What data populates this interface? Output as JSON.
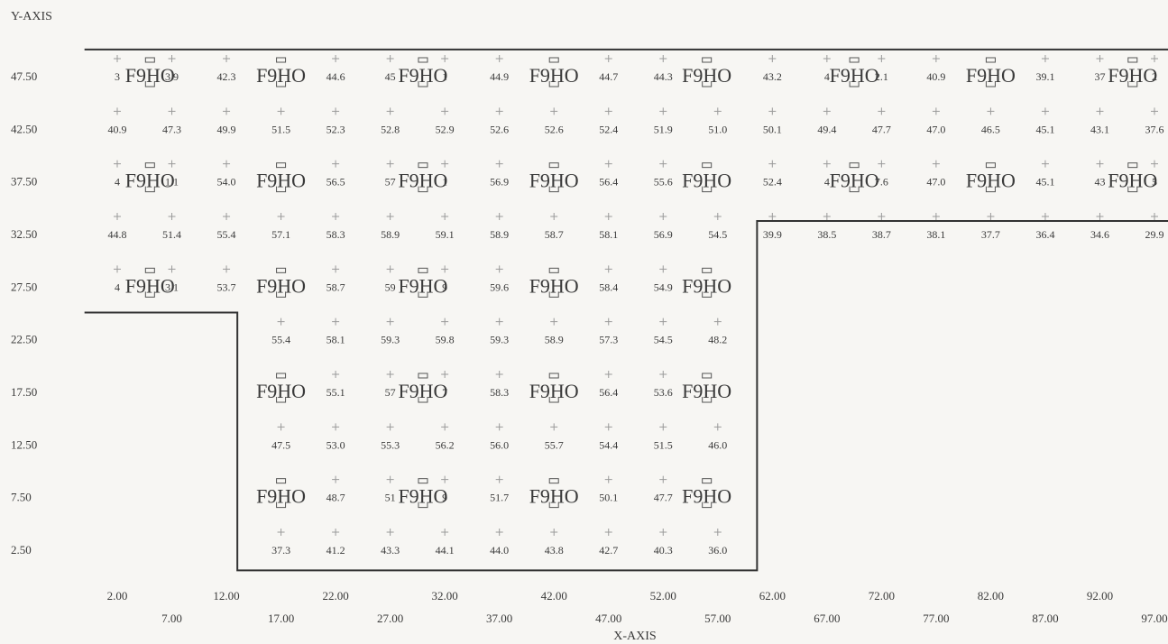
{
  "chart_data": {
    "type": "scatter",
    "xlabel": "X-AXIS",
    "ylabel": "Y-AXIS",
    "xlim": [
      2,
      97
    ],
    "ylim": [
      2.5,
      47.5
    ],
    "x_ticks": [
      "2.00",
      "7.00",
      "12.00",
      "17.00",
      "22.00",
      "27.00",
      "32.00",
      "37.00",
      "42.00",
      "47.00",
      "52.00",
      "57.00",
      "62.00",
      "67.00",
      "72.00",
      "77.00",
      "82.00",
      "87.00",
      "92.00",
      "97.00"
    ],
    "y_ticks": [
      "47.50",
      "42.50",
      "37.50",
      "32.50",
      "27.50",
      "22.50",
      "17.50",
      "12.50",
      "7.50",
      "2.50"
    ],
    "value_rows": [
      {
        "y": 47.5,
        "points": [
          [
            2,
            "3"
          ],
          [
            7,
            "3.9"
          ],
          [
            12,
            "42.3"
          ],
          [
            22,
            "44.6"
          ],
          [
            27,
            "45"
          ],
          [
            32,
            "1"
          ],
          [
            37,
            "44.9"
          ],
          [
            47,
            "44.7"
          ],
          [
            52,
            "44.3"
          ],
          [
            62,
            "43.2"
          ],
          [
            67,
            "4"
          ],
          [
            72,
            "2.1"
          ],
          [
            77,
            "40.9"
          ],
          [
            87,
            "39.1"
          ],
          [
            92,
            "37"
          ],
          [
            97,
            "2"
          ]
        ]
      },
      {
        "y": 42.5,
        "points": [
          [
            2,
            "40.9"
          ],
          [
            7,
            "47.3"
          ],
          [
            12,
            "49.9"
          ],
          [
            17,
            "51.5"
          ],
          [
            22,
            "52.3"
          ],
          [
            27,
            "52.8"
          ],
          [
            32,
            "52.9"
          ],
          [
            37,
            "52.6"
          ],
          [
            42,
            "52.6"
          ],
          [
            47,
            "52.4"
          ],
          [
            52,
            "51.9"
          ],
          [
            57,
            "51.0"
          ],
          [
            62,
            "50.1"
          ],
          [
            67,
            "49.4"
          ],
          [
            72,
            "47.7"
          ],
          [
            77,
            "47.0"
          ],
          [
            82,
            "46.5"
          ],
          [
            87,
            "45.1"
          ],
          [
            92,
            "43.1"
          ],
          [
            97,
            "37.6"
          ]
        ]
      },
      {
        "y": 37.5,
        "points": [
          [
            2,
            "4"
          ],
          [
            7,
            "1.1"
          ],
          [
            12,
            "54.0"
          ],
          [
            22,
            "56.5"
          ],
          [
            27,
            "57"
          ],
          [
            32,
            "1"
          ],
          [
            37,
            "56.9"
          ],
          [
            47,
            "56.4"
          ],
          [
            52,
            "55.6"
          ],
          [
            62,
            "52.4"
          ],
          [
            67,
            "4"
          ],
          [
            72,
            "7.6"
          ],
          [
            77,
            "47.0"
          ],
          [
            87,
            "45.1"
          ],
          [
            92,
            "43"
          ],
          [
            97,
            "5"
          ]
        ]
      },
      {
        "y": 32.5,
        "points": [
          [
            2,
            "44.8"
          ],
          [
            7,
            "51.4"
          ],
          [
            12,
            "55.4"
          ],
          [
            17,
            "57.1"
          ],
          [
            22,
            "58.3"
          ],
          [
            27,
            "58.9"
          ],
          [
            32,
            "59.1"
          ],
          [
            37,
            "58.9"
          ],
          [
            42,
            "58.7"
          ],
          [
            47,
            "58.1"
          ],
          [
            52,
            "56.9"
          ],
          [
            57,
            "54.5"
          ],
          [
            62,
            "39.9"
          ],
          [
            67,
            "38.5"
          ],
          [
            72,
            "38.7"
          ],
          [
            77,
            "38.1"
          ],
          [
            82,
            "37.7"
          ],
          [
            87,
            "36.4"
          ],
          [
            92,
            "34.6"
          ],
          [
            97,
            "29.9"
          ]
        ]
      },
      {
        "y": 27.5,
        "points": [
          [
            2,
            "4"
          ],
          [
            7,
            "3.1"
          ],
          [
            12,
            "53.7"
          ],
          [
            22,
            "58.7"
          ],
          [
            27,
            "59"
          ],
          [
            32,
            "9"
          ],
          [
            37,
            "59.6"
          ],
          [
            47,
            "58.4"
          ],
          [
            52,
            "54.9"
          ]
        ]
      },
      {
        "y": 22.5,
        "points": [
          [
            17,
            "55.4"
          ],
          [
            22,
            "58.1"
          ],
          [
            27,
            "59.3"
          ],
          [
            32,
            "59.8"
          ],
          [
            37,
            "59.3"
          ],
          [
            42,
            "58.9"
          ],
          [
            47,
            "57.3"
          ],
          [
            52,
            "54.5"
          ],
          [
            57,
            "48.2"
          ]
        ]
      },
      {
        "y": 17.5,
        "points": [
          [
            22,
            "55.1"
          ],
          [
            27,
            "57"
          ],
          [
            32,
            "7"
          ],
          [
            37,
            "58.3"
          ],
          [
            47,
            "56.4"
          ],
          [
            52,
            "53.6"
          ]
        ]
      },
      {
        "y": 12.5,
        "points": [
          [
            17,
            "47.5"
          ],
          [
            22,
            "53.0"
          ],
          [
            27,
            "55.3"
          ],
          [
            32,
            "56.2"
          ],
          [
            37,
            "56.0"
          ],
          [
            42,
            "55.7"
          ],
          [
            47,
            "54.4"
          ],
          [
            52,
            "51.5"
          ],
          [
            57,
            "46.0"
          ]
        ]
      },
      {
        "y": 7.5,
        "points": [
          [
            22,
            "48.7"
          ],
          [
            27,
            "51"
          ],
          [
            32,
            "9"
          ],
          [
            37,
            "51.7"
          ],
          [
            47,
            "50.1"
          ],
          [
            52,
            "47.7"
          ]
        ]
      },
      {
        "y": 2.5,
        "points": [
          [
            17,
            "37.3"
          ],
          [
            22,
            "41.2"
          ],
          [
            27,
            "43.3"
          ],
          [
            32,
            "44.1"
          ],
          [
            37,
            "44.0"
          ],
          [
            42,
            "43.8"
          ],
          [
            47,
            "42.7"
          ],
          [
            52,
            "40.3"
          ],
          [
            57,
            "36.0"
          ]
        ]
      }
    ],
    "fixtures": [
      {
        "x": 5.0,
        "y": 47.5,
        "label": "F9HO"
      },
      {
        "x": 17.0,
        "y": 47.5,
        "label": "F9HO"
      },
      {
        "x": 30.0,
        "y": 47.5,
        "label": "F9HO"
      },
      {
        "x": 42.0,
        "y": 47.5,
        "label": "F9HO"
      },
      {
        "x": 56.0,
        "y": 47.5,
        "label": "F9HO"
      },
      {
        "x": 69.5,
        "y": 47.5,
        "label": "F9HO"
      },
      {
        "x": 82.0,
        "y": 47.5,
        "label": "F9HO"
      },
      {
        "x": 95.0,
        "y": 47.5,
        "label": "F9HO"
      },
      {
        "x": 5.0,
        "y": 37.5,
        "label": "F9HO"
      },
      {
        "x": 17.0,
        "y": 37.5,
        "label": "F9HO"
      },
      {
        "x": 30.0,
        "y": 37.5,
        "label": "F9HO"
      },
      {
        "x": 42.0,
        "y": 37.5,
        "label": "F9HO"
      },
      {
        "x": 56.0,
        "y": 37.5,
        "label": "F9HO"
      },
      {
        "x": 69.5,
        "y": 37.5,
        "label": "F9HO"
      },
      {
        "x": 82.0,
        "y": 37.5,
        "label": "F9HO"
      },
      {
        "x": 95.0,
        "y": 37.5,
        "label": "F9HO"
      },
      {
        "x": 5.0,
        "y": 27.5,
        "label": "F9HO"
      },
      {
        "x": 17.0,
        "y": 27.5,
        "label": "F9HO"
      },
      {
        "x": 30.0,
        "y": 27.5,
        "label": "F9HO"
      },
      {
        "x": 42.0,
        "y": 27.5,
        "label": "F9HO"
      },
      {
        "x": 56.0,
        "y": 27.5,
        "label": "F9HO"
      },
      {
        "x": 17.0,
        "y": 17.5,
        "label": "F9HO"
      },
      {
        "x": 30.0,
        "y": 17.5,
        "label": "F9HO"
      },
      {
        "x": 42.0,
        "y": 17.5,
        "label": "F9HO"
      },
      {
        "x": 56.0,
        "y": 17.5,
        "label": "F9HO"
      },
      {
        "x": 17.0,
        "y": 7.5,
        "label": "F9HO"
      },
      {
        "x": 30.0,
        "y": 7.5,
        "label": "F9HO"
      },
      {
        "x": 42.0,
        "y": 7.5,
        "label": "F9HO"
      },
      {
        "x": 56.0,
        "y": 7.5,
        "label": "F9HO"
      }
    ],
    "boundary": [
      [
        -1,
        50
      ],
      [
        100,
        50
      ],
      [
        100,
        33.7
      ],
      [
        60.6,
        33.7
      ],
      [
        60.6,
        0.5
      ],
      [
        13,
        0.5
      ],
      [
        13,
        25
      ],
      [
        -1,
        25
      ]
    ]
  }
}
